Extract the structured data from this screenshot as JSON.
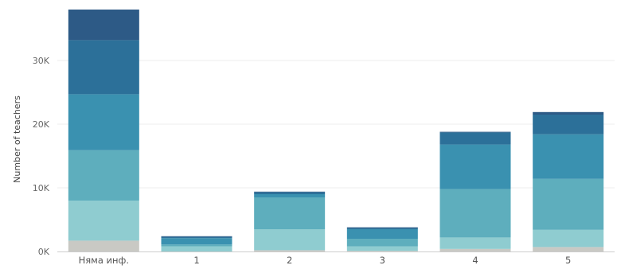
{
  "chart_data": {
    "type": "bar",
    "stacked": true,
    "title": "",
    "xlabel": "",
    "ylabel": "Number of teachers",
    "ylim": [
      0,
      38500
    ],
    "y_ticks": [
      {
        "value": 0,
        "label": "0K"
      },
      {
        "value": 10000,
        "label": "10K"
      },
      {
        "value": 20000,
        "label": "20K"
      },
      {
        "value": 30000,
        "label": "30K"
      }
    ],
    "grid": true,
    "legend": "none",
    "categories": [
      "Няма инф.",
      "1",
      "2",
      "3",
      "4",
      "5"
    ],
    "series": [
      {
        "color": "#c9c9c4",
        "values": [
          1700,
          0,
          200,
          100,
          400,
          700
        ]
      },
      {
        "color": "#8fccd0",
        "values": [
          6300,
          800,
          3300,
          700,
          1800,
          2700
        ]
      },
      {
        "color": "#5eaebd",
        "values": [
          7900,
          300,
          5000,
          1200,
          7600,
          8000
        ]
      },
      {
        "color": "#3a91b0",
        "values": [
          8800,
          1000,
          500,
          1500,
          7000,
          7000
        ]
      },
      {
        "color": "#2c7099",
        "values": [
          8500,
          200,
          300,
          200,
          1900,
          3100
        ]
      },
      {
        "color": "#2d5a86",
        "values": [
          4800,
          100,
          100,
          100,
          100,
          400
        ]
      }
    ]
  }
}
